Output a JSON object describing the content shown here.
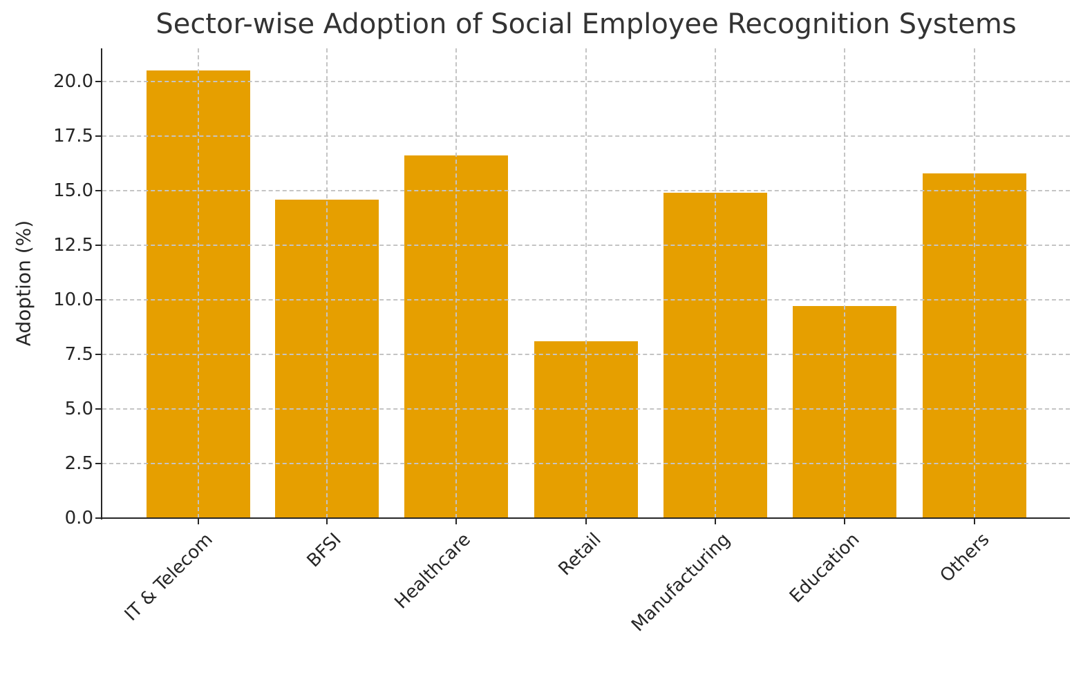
{
  "chart_data": {
    "type": "bar",
    "title": "Sector-wise Adoption of Social Employee Recognition Systems",
    "xlabel": "",
    "ylabel": "Adoption (%)",
    "categories": [
      "IT & Telecom",
      "BFSI",
      "Healthcare",
      "Retail",
      "Manufacturing",
      "Education",
      "Others"
    ],
    "values": [
      20.5,
      14.6,
      16.6,
      8.1,
      14.9,
      9.7,
      15.8
    ],
    "ylim": [
      0,
      21.5
    ],
    "yticks": [
      "0.0",
      "2.5",
      "5.0",
      "7.5",
      "10.0",
      "12.5",
      "15.0",
      "17.5",
      "20.0"
    ],
    "grid": true,
    "bar_color": "#E69F00",
    "legend": null
  }
}
